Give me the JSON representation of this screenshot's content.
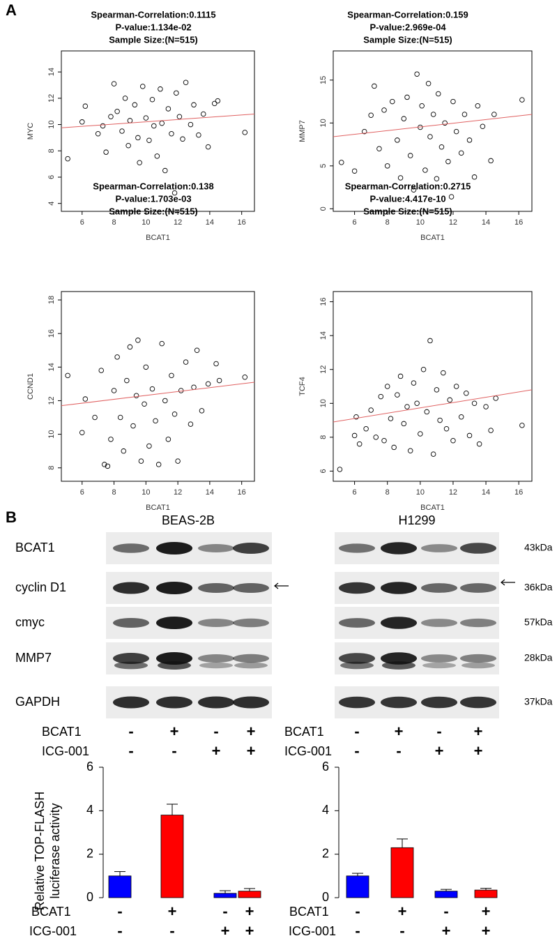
{
  "panel_labels": [
    "A",
    "B"
  ],
  "chart_data": [
    {
      "type": "scatter",
      "title": [
        "Spearman-Correlation:0.1115",
        "P-value:1.134e-02",
        "Sample Size:(N=515)"
      ],
      "xlabel": "BCAT1",
      "ylabel": "MYC",
      "xlim": [
        4.7,
        16.8
      ],
      "ylim": [
        3.4,
        15.6
      ],
      "xticks": [
        6,
        8,
        10,
        12,
        14,
        16
      ],
      "yticks": [
        4,
        6,
        8,
        10,
        12,
        14
      ],
      "color": "#000000",
      "x": [
        5.1,
        6.0,
        6.2,
        7.0,
        7.3,
        7.5,
        7.8,
        8.0,
        8.2,
        8.5,
        8.7,
        8.9,
        9.0,
        9.3,
        9.5,
        9.6,
        9.8,
        10.0,
        10.2,
        10.4,
        10.5,
        10.7,
        10.9,
        11.0,
        11.2,
        11.4,
        11.6,
        11.8,
        11.9,
        12.1,
        12.3,
        12.5,
        12.8,
        13.0,
        13.3,
        13.6,
        13.9,
        14.3,
        14.5,
        16.2
      ],
      "y": [
        7.4,
        10.2,
        11.4,
        9.3,
        9.9,
        7.9,
        10.6,
        13.1,
        11.0,
        9.5,
        12.0,
        8.4,
        10.3,
        11.5,
        9.0,
        7.1,
        12.9,
        10.5,
        8.8,
        11.9,
        9.9,
        7.6,
        12.7,
        10.1,
        6.5,
        11.2,
        9.3,
        4.8,
        12.4,
        10.6,
        8.9,
        13.2,
        10.0,
        11.5,
        9.2,
        10.8,
        8.3,
        11.6,
        11.8,
        9.4
      ],
      "fit_line": {
        "color": "#e06060",
        "x": [
          4.7,
          16.8
        ],
        "y": [
          9.75,
          10.8
        ]
      }
    },
    {
      "type": "scatter",
      "title": [
        "Spearman-Correlation:0.159",
        "P-value:2.969e-04",
        "Sample Size:(N=515)"
      ],
      "xlabel": "BCAT1",
      "ylabel": "MMP7",
      "xlim": [
        4.7,
        16.8
      ],
      "ylim": [
        -0.3,
        18.4
      ],
      "xticks": [
        6,
        8,
        10,
        12,
        14,
        16
      ],
      "yticks": [
        0,
        5,
        10,
        15
      ],
      "color": "#000000",
      "x": [
        5.2,
        6.0,
        6.6,
        7.0,
        7.2,
        7.5,
        7.8,
        8.0,
        8.3,
        8.6,
        8.8,
        9.0,
        9.2,
        9.4,
        9.6,
        9.8,
        10.0,
        10.1,
        10.3,
        10.5,
        10.6,
        10.8,
        11.0,
        11.1,
        11.3,
        11.5,
        11.7,
        11.9,
        12.0,
        12.2,
        12.5,
        12.7,
        13.0,
        13.3,
        13.5,
        13.8,
        14.3,
        14.5,
        16.2
      ],
      "y": [
        5.4,
        4.4,
        9.0,
        10.9,
        14.3,
        7.0,
        11.5,
        5.0,
        12.5,
        8.0,
        3.6,
        10.5,
        13.0,
        6.2,
        2.2,
        15.7,
        9.5,
        12.0,
        4.5,
        14.6,
        8.4,
        11.0,
        3.5,
        13.4,
        7.2,
        10.0,
        5.5,
        1.4,
        12.5,
        9.0,
        6.5,
        11.0,
        8.0,
        3.7,
        12.0,
        9.6,
        5.6,
        11.0,
        12.7
      ],
      "fit_line": {
        "color": "#e06060",
        "x": [
          4.7,
          16.8
        ],
        "y": [
          8.4,
          11.0
        ]
      }
    },
    {
      "type": "scatter",
      "title": [
        "Spearman-Correlation:0.138",
        "P-value:1.703e-03",
        "Sample Size:(N=515)"
      ],
      "xlabel": "BCAT1",
      "ylabel": "CCND1",
      "xlim": [
        4.7,
        16.8
      ],
      "ylim": [
        7.2,
        18.5
      ],
      "xticks": [
        6,
        8,
        10,
        12,
        14,
        16
      ],
      "yticks": [
        8,
        10,
        12,
        14,
        16,
        18
      ],
      "color": "#000000",
      "x": [
        5.1,
        6.0,
        6.2,
        6.8,
        7.2,
        7.4,
        7.6,
        7.8,
        8.0,
        8.2,
        8.4,
        8.6,
        8.8,
        9.0,
        9.2,
        9.4,
        9.5,
        9.7,
        9.9,
        10.0,
        10.2,
        10.4,
        10.6,
        10.8,
        11.0,
        11.2,
        11.4,
        11.6,
        11.8,
        12.0,
        12.2,
        12.5,
        12.8,
        13.0,
        13.2,
        13.5,
        13.9,
        14.4,
        14.6,
        16.2
      ],
      "y": [
        13.5,
        10.1,
        12.1,
        11.0,
        13.8,
        8.2,
        8.1,
        9.7,
        12.6,
        14.6,
        11.0,
        9.0,
        13.2,
        15.2,
        10.5,
        12.3,
        15.6,
        8.4,
        11.8,
        14.0,
        9.3,
        12.7,
        10.8,
        8.2,
        15.4,
        12.0,
        9.7,
        13.5,
        11.2,
        8.4,
        12.6,
        14.3,
        10.6,
        12.8,
        15.0,
        11.4,
        13.0,
        14.2,
        13.2,
        13.4
      ],
      "fit_line": {
        "color": "#e06060",
        "x": [
          4.7,
          16.8
        ],
        "y": [
          11.7,
          13.1
        ]
      }
    },
    {
      "type": "scatter",
      "title": [
        "Spearman-Correlation:0.2715",
        "P-value:4.417e-10",
        "Sample Size:(N=515)"
      ],
      "xlabel": "BCAT1",
      "ylabel": "TCF4",
      "xlim": [
        4.7,
        16.8
      ],
      "ylim": [
        5.4,
        16.6
      ],
      "xticks": [
        6,
        8,
        10,
        12,
        14,
        16
      ],
      "yticks": [
        6,
        8,
        10,
        12,
        14,
        16
      ],
      "color": "#000000",
      "x": [
        5.1,
        6.0,
        6.1,
        6.3,
        6.7,
        7.0,
        7.3,
        7.6,
        7.8,
        8.0,
        8.2,
        8.4,
        8.6,
        8.8,
        9.0,
        9.2,
        9.4,
        9.6,
        9.8,
        10.0,
        10.2,
        10.4,
        10.6,
        10.8,
        11.0,
        11.2,
        11.4,
        11.6,
        11.8,
        12.0,
        12.2,
        12.5,
        12.8,
        13.0,
        13.3,
        13.6,
        14.0,
        14.3,
        14.6,
        16.2
      ],
      "y": [
        6.1,
        8.1,
        9.2,
        7.6,
        8.5,
        9.6,
        8.0,
        10.4,
        7.8,
        11.0,
        9.1,
        7.4,
        10.5,
        11.6,
        8.8,
        9.8,
        7.2,
        11.2,
        10.0,
        8.2,
        12.0,
        9.5,
        13.7,
        7.0,
        10.8,
        9.0,
        11.8,
        8.5,
        10.2,
        7.8,
        11.0,
        9.2,
        10.6,
        8.1,
        10.0,
        7.6,
        9.8,
        8.4,
        10.3,
        8.7
      ],
      "fit_line": {
        "color": "#e06060",
        "x": [
          4.7,
          16.8
        ],
        "y": [
          8.9,
          10.8
        ]
      }
    },
    {
      "type": "bar",
      "ylabel": [
        "Relative TOP-FLASH",
        "luciferase activity"
      ],
      "ylim": [
        0,
        6
      ],
      "yticks": [
        0,
        2,
        4,
        6
      ],
      "values": [
        1.0,
        3.8,
        0.2,
        0.3
      ],
      "errors": [
        0.2,
        0.5,
        0.12,
        0.12
      ],
      "colors": [
        "#0000ff",
        "#ff0000",
        "#0000ff",
        "#ff0000"
      ],
      "conditions": [
        {
          "name": "BCAT1",
          "signs": [
            "-",
            "+",
            "-",
            "+"
          ]
        },
        {
          "name": "ICG-001",
          "signs": [
            "-",
            "-",
            "+",
            "+"
          ]
        }
      ]
    },
    {
      "type": "bar",
      "ylim": [
        0,
        6
      ],
      "yticks": [
        0,
        2,
        4,
        6
      ],
      "values": [
        1.0,
        2.3,
        0.3,
        0.35
      ],
      "errors": [
        0.12,
        0.4,
        0.08,
        0.08
      ],
      "colors": [
        "#0000ff",
        "#ff0000",
        "#0000ff",
        "#ff0000"
      ],
      "conditions": [
        {
          "name": "BCAT1",
          "signs": [
            "-",
            "+",
            "-",
            "+"
          ]
        },
        {
          "name": "ICG-001",
          "signs": [
            "-",
            "-",
            "+",
            "+"
          ]
        }
      ]
    }
  ],
  "blot": {
    "cell_lines": [
      "BEAS-2B",
      "H1299"
    ],
    "proteins": [
      "BCAT1",
      "cyclin D1",
      "cmyc",
      "MMP7",
      "GAPDH"
    ],
    "sizes": [
      "43kDa",
      "36kDa",
      "57kDa",
      "28kDa",
      "37kDa"
    ],
    "conditions": [
      {
        "name": "BCAT1",
        "signs": [
          "-",
          "+",
          "-",
          "+"
        ]
      },
      {
        "name": "ICG-001",
        "signs": [
          "-",
          "-",
          "+",
          "+"
        ]
      }
    ]
  }
}
